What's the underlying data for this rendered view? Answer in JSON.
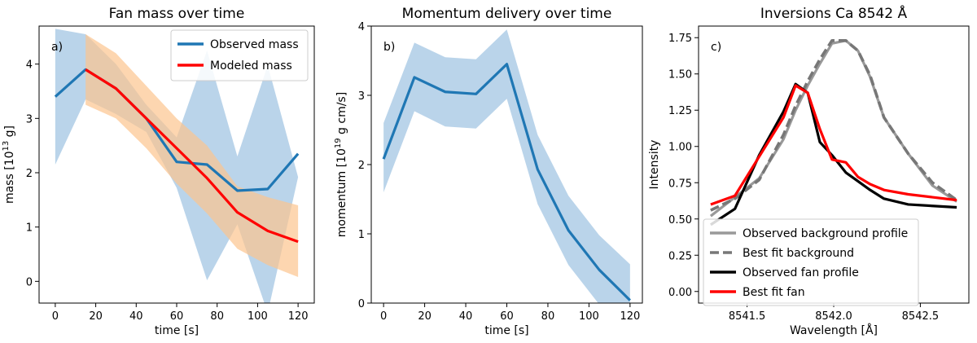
{
  "chart_data": [
    {
      "type": "line",
      "title": "Fan mass over time",
      "panel_label": "a)",
      "xlabel": "time [s]",
      "ylabel": "mass [10",
      "ylabel_sup": "13",
      "ylabel_tail": " g]",
      "xlim": [
        -8,
        128
      ],
      "ylim": [
        -0.4,
        4.7
      ],
      "xticks": [
        0,
        20,
        40,
        60,
        80,
        100,
        120
      ],
      "yticks": [
        0,
        1,
        2,
        3,
        4
      ],
      "legend_position": "top-right",
      "series": [
        {
          "name": "Observed mass",
          "color": "#1f77b4",
          "x": [
            0,
            15,
            30,
            45,
            60,
            75,
            90,
            105,
            120
          ],
          "y": [
            3.4,
            3.9,
            3.55,
            3.0,
            2.2,
            2.15,
            1.67,
            1.7,
            2.35
          ],
          "band_upper": [
            4.65,
            4.55,
            4.0,
            3.25,
            2.65,
            4.25,
            2.3,
            3.98,
            1.92
          ],
          "band_lower": [
            2.15,
            3.35,
            3.08,
            2.75,
            1.72,
            0.02,
            1.05,
            -0.58,
            1.92
          ],
          "band_color": "#aecde6"
        },
        {
          "name": "Modeled mass",
          "color": "#ff0000",
          "x": [
            15,
            30,
            45,
            60,
            75,
            90,
            105,
            120
          ],
          "y": [
            3.9,
            3.55,
            3.0,
            2.45,
            1.9,
            1.27,
            0.93,
            0.73
          ],
          "band_x": [
            15,
            30,
            45,
            60,
            75,
            90,
            105,
            120
          ],
          "band_upper": [
            4.55,
            4.2,
            3.6,
            3.0,
            2.5,
            1.75,
            1.55,
            1.4
          ],
          "band_lower": [
            3.25,
            3.0,
            2.45,
            1.8,
            1.25,
            0.6,
            0.3,
            0.08
          ],
          "band_color": "#fcc48e"
        }
      ]
    },
    {
      "type": "line",
      "title": "Momentum delivery over time",
      "panel_label": "b)",
      "xlabel": "time [s]",
      "ylabel": "momentum [10",
      "ylabel_sup": "19",
      "ylabel_tail": " g cm/s]",
      "xlim": [
        -6,
        126
      ],
      "ylim": [
        0,
        4
      ],
      "xticks": [
        0,
        20,
        40,
        60,
        80,
        100,
        120
      ],
      "yticks": [
        0,
        1,
        2,
        3,
        4
      ],
      "series": [
        {
          "color": "#1f77b4",
          "x": [
            0,
            15,
            30,
            45,
            60,
            75,
            90,
            105,
            120
          ],
          "y": [
            2.08,
            3.26,
            3.05,
            3.02,
            3.45,
            1.93,
            1.05,
            0.48,
            0.04
          ],
          "band_upper": [
            2.6,
            3.76,
            3.55,
            3.52,
            3.95,
            2.43,
            1.55,
            0.98,
            0.56
          ],
          "band_lower": [
            1.6,
            2.77,
            2.55,
            2.52,
            2.95,
            1.43,
            0.55,
            -0.02,
            -0.46
          ],
          "band_color": "#aecde6"
        }
      ]
    },
    {
      "type": "line",
      "title": "Inversions Ca 8542 Å",
      "panel_label": "c)",
      "xlabel": "Wavelength [Å]",
      "ylabel": "Intensity",
      "xlim": [
        8541.22,
        8542.78
      ],
      "ylim": [
        -0.08,
        1.83
      ],
      "xticks": [
        "8541.5",
        "8542.0",
        "8542.5"
      ],
      "xtick_values": [
        8541.5,
        8542.0,
        8542.5
      ],
      "yticks": [
        "0.00",
        "0.25",
        "0.50",
        "0.75",
        "1.00",
        "1.25",
        "1.50",
        "1.75"
      ],
      "ytick_values": [
        0.0,
        0.25,
        0.5,
        0.75,
        1.0,
        1.25,
        1.5,
        1.75
      ],
      "legend_position": "bottom-left",
      "series": [
        {
          "name": "Observed background profile",
          "color": "#999999",
          "style": "solid",
          "x": [
            8541.29,
            8541.43,
            8541.57,
            8541.71,
            8541.78,
            8541.85,
            8541.92,
            8541.99,
            8542.07,
            8542.14,
            8542.21,
            8542.29,
            8542.43,
            8542.57,
            8542.71
          ],
          "y": [
            0.52,
            0.65,
            0.78,
            1.05,
            1.25,
            1.42,
            1.57,
            1.71,
            1.73,
            1.66,
            1.48,
            1.2,
            0.95,
            0.73,
            0.62
          ]
        },
        {
          "name": "Best fit background",
          "color": "#777777",
          "style": "dashed",
          "x": [
            8541.29,
            8541.43,
            8541.57,
            8541.71,
            8541.78,
            8541.85,
            8541.92,
            8541.99,
            8542.07,
            8542.14,
            8542.21,
            8542.29,
            8542.43,
            8542.57,
            8542.71
          ],
          "y": [
            0.56,
            0.64,
            0.77,
            1.08,
            1.28,
            1.45,
            1.6,
            1.73,
            1.73,
            1.66,
            1.49,
            1.2,
            0.95,
            0.75,
            0.63
          ]
        },
        {
          "name": "Observed fan profile",
          "color": "#000000",
          "style": "solid",
          "x": [
            8541.29,
            8541.43,
            8541.57,
            8541.71,
            8541.78,
            8541.85,
            8541.92,
            8541.99,
            8542.07,
            8542.14,
            8542.21,
            8542.29,
            8542.43,
            8542.57,
            8542.71
          ],
          "y": [
            0.46,
            0.57,
            0.94,
            1.24,
            1.43,
            1.37,
            1.03,
            0.94,
            0.82,
            0.76,
            0.7,
            0.64,
            0.6,
            0.59,
            0.58
          ]
        },
        {
          "name": "Best fit fan",
          "color": "#ff0000",
          "style": "solid",
          "x": [
            8541.29,
            8541.43,
            8541.57,
            8541.71,
            8541.78,
            8541.85,
            8541.92,
            8541.99,
            8542.07,
            8542.14,
            8542.21,
            8542.29,
            8542.43,
            8542.57,
            8542.71
          ],
          "y": [
            0.6,
            0.66,
            0.93,
            1.2,
            1.42,
            1.37,
            1.12,
            0.91,
            0.89,
            0.79,
            0.74,
            0.7,
            0.67,
            0.65,
            0.63
          ]
        }
      ]
    }
  ]
}
